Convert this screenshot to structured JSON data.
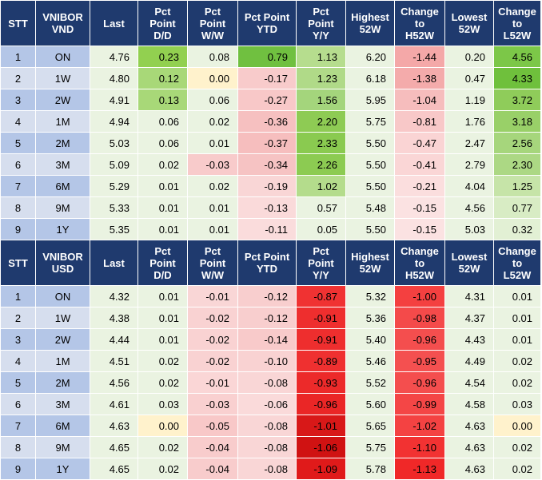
{
  "tables": [
    {
      "headers": [
        "STT",
        "VNIBOR\nVND",
        "Last",
        "Pct\nPoint\nD/D",
        "Pct\nPoint\nW/W",
        "Pct Point\nYTD",
        "Pct\nPoint\nY/Y",
        "Highest\n52W",
        "Change\nto\nH52W",
        "Lowest\n52W",
        "Change\nto\nL52W"
      ],
      "rows": [
        [
          "1",
          "ON",
          "4.76",
          "0.23",
          "0.08",
          "0.79",
          "1.13",
          "6.20",
          "-1.44",
          "0.20",
          "4.56"
        ],
        [
          "2",
          "1W",
          "4.80",
          "0.12",
          "0.00",
          "-0.17",
          "1.23",
          "6.18",
          "-1.38",
          "0.47",
          "4.33"
        ],
        [
          "3",
          "2W",
          "4.91",
          "0.13",
          "0.06",
          "-0.27",
          "1.56",
          "5.95",
          "-1.04",
          "1.19",
          "3.72"
        ],
        [
          "4",
          "1M",
          "4.94",
          "0.06",
          "0.02",
          "-0.36",
          "2.20",
          "5.75",
          "-0.81",
          "1.76",
          "3.18"
        ],
        [
          "5",
          "2M",
          "5.03",
          "0.06",
          "0.01",
          "-0.37",
          "2.33",
          "5.50",
          "-0.47",
          "2.47",
          "2.56"
        ],
        [
          "6",
          "3M",
          "5.09",
          "0.02",
          "-0.03",
          "-0.34",
          "2.26",
          "5.50",
          "-0.41",
          "2.79",
          "2.30"
        ],
        [
          "7",
          "6M",
          "5.29",
          "0.01",
          "0.02",
          "-0.19",
          "1.02",
          "5.50",
          "-0.21",
          "4.04",
          "1.25"
        ],
        [
          "8",
          "9M",
          "5.33",
          "0.01",
          "0.01",
          "-0.13",
          "0.57",
          "5.48",
          "-0.15",
          "4.56",
          "0.77"
        ],
        [
          "9",
          "1Y",
          "5.35",
          "0.01",
          "0.01",
          "-0.11",
          "0.05",
          "5.50",
          "-0.15",
          "5.03",
          "0.32"
        ]
      ],
      "colors": [
        [
          "",
          "",
          "#EAF3E1",
          "#92D050",
          "#EAF3E1",
          "#70C040",
          "#B6DD8E",
          "#EAF3E1",
          "#F4A8A8",
          "#EAF3E1",
          "#7CC748"
        ],
        [
          "",
          "",
          "#EAF3E1",
          "#A8D878",
          "#FFF2CC",
          "#F8CBCB",
          "#B0DA88",
          "#EAF3E1",
          "#F4ABAB",
          "#EAF3E1",
          "#6FC03C"
        ],
        [
          "",
          "",
          "#EAF3E1",
          "#A8D878",
          "#EAF3E1",
          "#F8C8C8",
          "#A4D57C",
          "#EAF3E1",
          "#F6BDBD",
          "#EAF3E1",
          "#8FCC5A"
        ],
        [
          "",
          "",
          "#EAF3E1",
          "#EAF3E1",
          "#EAF3E1",
          "#F6C0C0",
          "#8ECB54",
          "#EAF3E1",
          "#F8C8C8",
          "#EAF3E1",
          "#99D068"
        ],
        [
          "",
          "",
          "#EAF3E1",
          "#EAF3E1",
          "#EAF3E1",
          "#F6BEBE",
          "#8ACA50",
          "#EAF3E1",
          "#FAD4D4",
          "#EAF3E1",
          "#A6D67C"
        ],
        [
          "",
          "",
          "#EAF3E1",
          "#EAF3E1",
          "#F8CBCB",
          "#F6C3C3",
          "#8CCB52",
          "#EAF3E1",
          "#FAD6D6",
          "#EAF3E1",
          "#ACD884"
        ],
        [
          "",
          "",
          "#EAF3E1",
          "#EAF3E1",
          "#EAF3E1",
          "#F9D6D6",
          "#B4DC8C",
          "#EAF3E1",
          "#FBDEDE",
          "#EAF3E1",
          "#C6E4A8"
        ],
        [
          "",
          "",
          "#EAF3E1",
          "#EAF3E1",
          "#EAF3E1",
          "#FADADA",
          "#EAF3E1",
          "#EAF3E1",
          "#FBE2E2",
          "#EAF3E1",
          "#D8ECC4"
        ],
        [
          "",
          "",
          "#EAF3E1",
          "#EAF3E1",
          "#EAF3E1",
          "#FADCDC",
          "#EAF3E1",
          "#EAF3E1",
          "#FBE2E2",
          "#EAF3E1",
          "#E2F0D4"
        ]
      ]
    },
    {
      "headers": [
        "STT",
        "VNIBOR\nUSD",
        "Last",
        "Pct\nPoint\nD/D",
        "Pct\nPoint\nW/W",
        "Pct Point\nYTD",
        "Pct\nPoint\nY/Y",
        "Highest\n52W",
        "Change\nto\nH52W",
        "Lowest\n52W",
        "Change\nto\nL52W"
      ],
      "rows": [
        [
          "1",
          "ON",
          "4.32",
          "0.01",
          "-0.01",
          "-0.12",
          "-0.87",
          "5.32",
          "-1.00",
          "4.31",
          "0.01"
        ],
        [
          "2",
          "1W",
          "4.38",
          "0.01",
          "-0.02",
          "-0.12",
          "-0.91",
          "5.36",
          "-0.98",
          "4.37",
          "0.01"
        ],
        [
          "3",
          "2W",
          "4.44",
          "0.01",
          "-0.02",
          "-0.14",
          "-0.91",
          "5.40",
          "-0.96",
          "4.43",
          "0.01"
        ],
        [
          "4",
          "1M",
          "4.51",
          "0.02",
          "-0.02",
          "-0.10",
          "-0.89",
          "5.46",
          "-0.95",
          "4.49",
          "0.02"
        ],
        [
          "5",
          "2M",
          "4.56",
          "0.02",
          "-0.01",
          "-0.08",
          "-0.93",
          "5.52",
          "-0.96",
          "4.54",
          "0.02"
        ],
        [
          "6",
          "3M",
          "4.61",
          "0.03",
          "-0.03",
          "-0.06",
          "-0.96",
          "5.60",
          "-0.99",
          "4.58",
          "0.03"
        ],
        [
          "7",
          "6M",
          "4.63",
          "0.00",
          "-0.05",
          "-0.08",
          "-1.01",
          "5.65",
          "-1.02",
          "4.63",
          "0.00"
        ],
        [
          "8",
          "9M",
          "4.65",
          "0.02",
          "-0.04",
          "-0.08",
          "-1.06",
          "5.75",
          "-1.10",
          "4.63",
          "0.02"
        ],
        [
          "9",
          "1Y",
          "4.65",
          "0.02",
          "-0.04",
          "-0.08",
          "-1.09",
          "5.78",
          "-1.13",
          "4.63",
          "0.02"
        ]
      ],
      "colors": [
        [
          "",
          "",
          "#EAF3E1",
          "#EAF3E1",
          "#F9D6D6",
          "#F8CECE",
          "#F03232",
          "#EAF3E1",
          "#F44040",
          "#EAF3E1",
          "#EAF3E1"
        ],
        [
          "",
          "",
          "#EAF3E1",
          "#EAF3E1",
          "#F9D2D2",
          "#F8CECE",
          "#EE2E2E",
          "#EAF3E1",
          "#F44A4A",
          "#EAF3E1",
          "#EAF3E1"
        ],
        [
          "",
          "",
          "#EAF3E1",
          "#EAF3E1",
          "#F9D2D2",
          "#F8CACA",
          "#EE2E2E",
          "#EAF3E1",
          "#F44E4E",
          "#EAF3E1",
          "#EAF3E1"
        ],
        [
          "",
          "",
          "#EAF3E1",
          "#EAF3E1",
          "#F9D2D2",
          "#F9D2D2",
          "#EF3030",
          "#EAF3E1",
          "#F45050",
          "#EAF3E1",
          "#EAF3E1"
        ],
        [
          "",
          "",
          "#EAF3E1",
          "#EAF3E1",
          "#FAD6D6",
          "#F9D6D6",
          "#EC2A2A",
          "#EAF3E1",
          "#F44E4E",
          "#EAF3E1",
          "#EAF3E1"
        ],
        [
          "",
          "",
          "#EAF3E1",
          "#EAF3E1",
          "#F9D0D0",
          "#FADADA",
          "#EA2626",
          "#EAF3E1",
          "#F44646",
          "#EAF3E1",
          "#EAF3E1"
        ],
        [
          "",
          "",
          "#EAF3E1",
          "#FFF2CC",
          "#F8C8C8",
          "#F9D6D6",
          "#D81818",
          "#EAF3E1",
          "#F44242",
          "#EAF3E1",
          "#FFF2CC"
        ],
        [
          "",
          "",
          "#EAF3E1",
          "#EAF3E1",
          "#F8CCCC",
          "#F9D6D6",
          "#D01212",
          "#EAF3E1",
          "#F23232",
          "#EAF3E1",
          "#EAF3E1"
        ],
        [
          "",
          "",
          "#EAF3E1",
          "#EAF3E1",
          "#F8CCCC",
          "#F9D6D6",
          "#E01A1A",
          "#EAF3E1",
          "#F02828",
          "#EAF3E1",
          "#EAF3E1"
        ]
      ]
    }
  ]
}
